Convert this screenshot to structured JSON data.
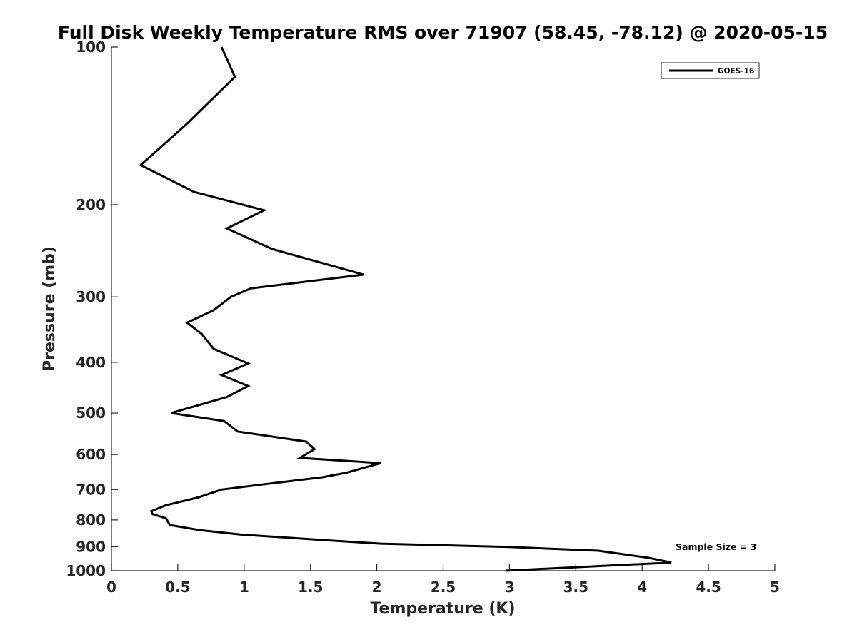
{
  "chart_data": {
    "type": "line",
    "title": "Full Disk Weekly Temperature RMS over 71907 (58.45, -78.12) @ 2020-05-15",
    "xlabel": "Temperature (K)",
    "ylabel": "Pressure (mb)",
    "xlim": [
      0,
      5
    ],
    "ylim": [
      100,
      1000
    ],
    "y_scale": "log",
    "y_reversed": true,
    "x_ticks": [
      0,
      0.5,
      1,
      1.5,
      2,
      2.5,
      3,
      3.5,
      4,
      4.5,
      5
    ],
    "x_tick_labels": [
      "0",
      "0.5",
      "1",
      "1.5",
      "2",
      "2.5",
      "3",
      "3.5",
      "4",
      "4.5",
      "5"
    ],
    "y_ticks": [
      100,
      200,
      300,
      400,
      500,
      600,
      700,
      800,
      900,
      1000
    ],
    "y_tick_labels": [
      "100",
      "200",
      "300",
      "400",
      "500",
      "600",
      "700",
      "800",
      "900",
      "1000"
    ],
    "grid": false,
    "legend_position": "top-right",
    "annotation": "Sample Size = 3",
    "series": [
      {
        "name": "GOES-16",
        "color": "#000000",
        "points": [
          [
            0.83,
            100
          ],
          [
            0.93,
            114
          ],
          [
            0.57,
            140
          ],
          [
            0.22,
            168
          ],
          [
            0.62,
            189
          ],
          [
            1.15,
            205
          ],
          [
            0.87,
            222
          ],
          [
            1.21,
            243
          ],
          [
            1.9,
            272
          ],
          [
            1.05,
            289
          ],
          [
            0.9,
            300
          ],
          [
            0.77,
            318
          ],
          [
            0.57,
            336
          ],
          [
            0.68,
            353
          ],
          [
            0.77,
            377
          ],
          [
            1.03,
            402
          ],
          [
            0.83,
            423
          ],
          [
            1.03,
            444
          ],
          [
            0.87,
            466
          ],
          [
            0.45,
            500
          ],
          [
            0.85,
            518
          ],
          [
            0.95,
            542
          ],
          [
            1.47,
            567
          ],
          [
            1.53,
            586
          ],
          [
            1.42,
            609
          ],
          [
            2.03,
            623
          ],
          [
            1.77,
            650
          ],
          [
            1.59,
            663
          ],
          [
            1.23,
            680
          ],
          [
            0.83,
            700
          ],
          [
            0.65,
            725
          ],
          [
            0.41,
            750
          ],
          [
            0.3,
            770
          ],
          [
            0.31,
            780
          ],
          [
            0.41,
            794
          ],
          [
            0.44,
            818
          ],
          [
            0.67,
            837
          ],
          [
            0.97,
            853
          ],
          [
            1.6,
            874
          ],
          [
            2.03,
            888
          ],
          [
            3.0,
            901
          ],
          [
            3.67,
            916
          ],
          [
            4.05,
            945
          ],
          [
            4.22,
            965
          ],
          [
            2.97,
            1000
          ]
        ]
      }
    ]
  }
}
